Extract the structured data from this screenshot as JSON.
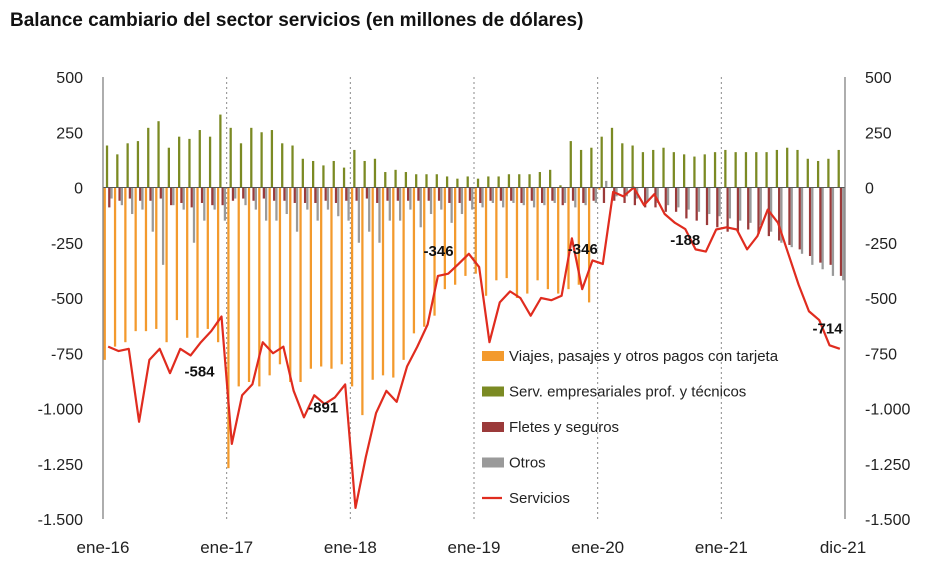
{
  "chart_data": {
    "type": "bar+line",
    "title": "Balance cambiario del sector servicios (en millones de dólares)",
    "ylim": [
      -1500,
      500
    ],
    "y_ticks": [
      500,
      250,
      0,
      -250,
      -500,
      -750,
      -1000,
      -1250,
      -1500
    ],
    "y_tick_labels": [
      "500",
      "250",
      "0",
      "-250",
      "-500",
      "-750",
      "-1.000",
      "-1.250",
      "-1.500"
    ],
    "x_tick_labels": [
      "ene-16",
      "ene-17",
      "ene-18",
      "ene-19",
      "ene-20",
      "ene-21",
      "dic-21"
    ],
    "x_tick_indices": [
      0,
      12,
      24,
      36,
      48,
      60,
      71
    ],
    "categories_count": 72,
    "series": [
      {
        "name": "Viajes, pasajes y otros pagos con tarjeta",
        "color": "#f39a2d",
        "kind": "bar",
        "values": [
          -780,
          -720,
          -700,
          -650,
          -650,
          -640,
          -700,
          -600,
          -680,
          -680,
          -640,
          -700,
          -1270,
          -900,
          -880,
          -900,
          -850,
          -800,
          -880,
          -880,
          -820,
          -810,
          -820,
          -800,
          -900,
          -1030,
          -870,
          -850,
          -860,
          -780,
          -660,
          -630,
          -580,
          -460,
          -440,
          -400,
          -390,
          -490,
          -420,
          -410,
          -500,
          -480,
          -420,
          -460,
          -480,
          -460,
          -440,
          -520,
          -10,
          0,
          0,
          0,
          0,
          0,
          0,
          0,
          0,
          0,
          0,
          0,
          0,
          0,
          0,
          0,
          0,
          0,
          0,
          0,
          0,
          0,
          0,
          0
        ]
      },
      {
        "name": "Serv. empresariales prof. y técnicos",
        "color": "#7b8a23",
        "kind": "bar",
        "values": [
          190,
          150,
          200,
          210,
          270,
          300,
          180,
          230,
          220,
          260,
          230,
          330,
          270,
          200,
          270,
          250,
          260,
          200,
          190,
          130,
          120,
          100,
          120,
          90,
          170,
          120,
          130,
          70,
          80,
          70,
          60,
          60,
          60,
          50,
          40,
          50,
          40,
          50,
          50,
          60,
          60,
          60,
          70,
          80,
          10,
          210,
          170,
          180,
          230,
          270,
          200,
          190,
          160,
          170,
          180,
          160,
          150,
          140,
          150,
          160,
          170,
          160,
          160,
          160,
          160,
          170,
          180,
          170,
          130,
          120,
          130,
          170
        ]
      },
      {
        "name": "Fletes y seguros",
        "color": "#9b3a3a",
        "kind": "bar",
        "values": [
          -90,
          -60,
          -50,
          -60,
          -60,
          -50,
          -80,
          -70,
          -90,
          -70,
          -80,
          -80,
          -60,
          -50,
          -60,
          -50,
          -60,
          -60,
          -70,
          -70,
          -70,
          -60,
          -70,
          -60,
          -60,
          -50,
          -70,
          -60,
          -60,
          -60,
          -60,
          -60,
          -60,
          -70,
          -70,
          -60,
          -70,
          -60,
          -60,
          -60,
          -70,
          -60,
          -70,
          -60,
          -80,
          -60,
          -70,
          -60,
          -70,
          -60,
          -70,
          -80,
          -90,
          -90,
          -110,
          -110,
          -140,
          -150,
          -170,
          -180,
          -200,
          -200,
          -190,
          -210,
          -220,
          -240,
          -260,
          -280,
          -310,
          -340,
          -350,
          -400
        ]
      },
      {
        "name": "Otros",
        "color": "#9a9a9a",
        "kind": "bar",
        "values": [
          -50,
          -80,
          -120,
          -100,
          -200,
          -350,
          -80,
          -100,
          -250,
          -150,
          -100,
          -150,
          -50,
          -80,
          -100,
          -150,
          -150,
          -120,
          -200,
          -100,
          -150,
          -100,
          -130,
          -150,
          -250,
          -200,
          -250,
          -150,
          -150,
          -100,
          -180,
          -120,
          -100,
          -160,
          -120,
          -100,
          -90,
          -70,
          -90,
          -70,
          -80,
          -90,
          -80,
          -70,
          -70,
          -90,
          -80,
          -70,
          30,
          -40,
          -40,
          -50,
          -60,
          -70,
          -80,
          -90,
          -100,
          -110,
          -120,
          -130,
          -140,
          -150,
          -160,
          -170,
          -200,
          -250,
          -270,
          -300,
          -350,
          -370,
          -400,
          -420
        ]
      },
      {
        "name": "Servicios",
        "color": "#e02c1f",
        "kind": "line",
        "values": [
          -720,
          -740,
          -730,
          -1060,
          -780,
          -730,
          -840,
          -730,
          -760,
          -700,
          -650,
          -584,
          -1160,
          -940,
          -890,
          -700,
          -750,
          -720,
          -920,
          -1040,
          -940,
          -980,
          -950,
          -891,
          -1450,
          -1220,
          -1020,
          -920,
          -970,
          -810,
          -720,
          -620,
          -400,
          -390,
          -346,
          -300,
          -360,
          -700,
          -520,
          -470,
          -500,
          -580,
          -500,
          -510,
          -490,
          -230,
          -460,
          -330,
          -346,
          -20,
          -40,
          0,
          -80,
          -30,
          -120,
          -160,
          -188,
          -280,
          -290,
          -190,
          -180,
          -190,
          -280,
          -220,
          -100,
          -160,
          -300,
          -440,
          -560,
          -600,
          -714,
          -730
        ]
      }
    ],
    "annotations": [
      {
        "index": 11,
        "value": -584,
        "label": "-584"
      },
      {
        "index": 23,
        "value": -891,
        "label": "-891"
      },
      {
        "index": 34,
        "value": -346,
        "label": "-346"
      },
      {
        "index": 48,
        "value": -346,
        "label": "-346"
      },
      {
        "index": 56,
        "value": -188,
        "label": "-188"
      },
      {
        "index": 70,
        "value": -714,
        "label": "-714"
      }
    ]
  }
}
